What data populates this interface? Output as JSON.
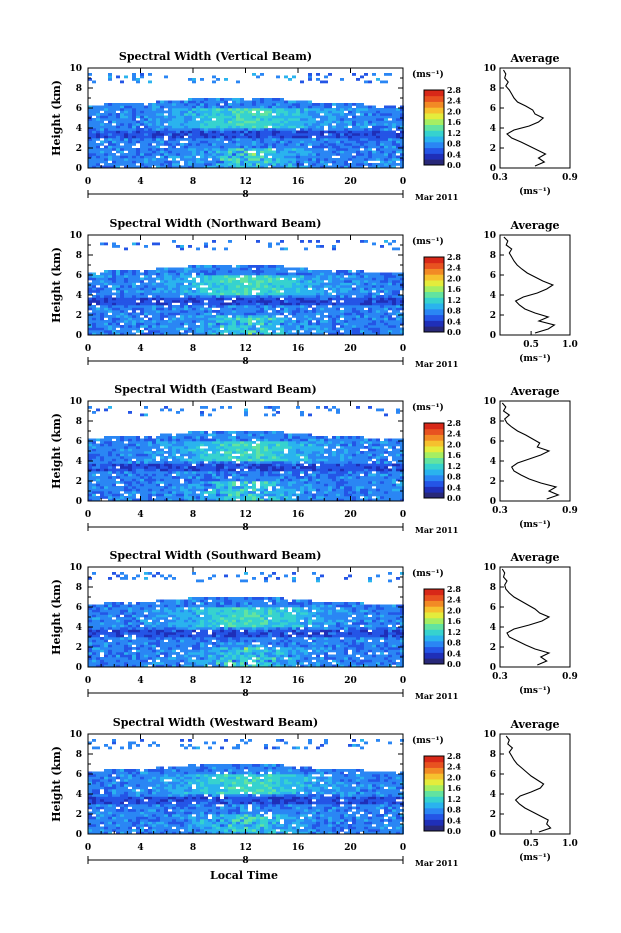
{
  "x_axis_title": "Local Time",
  "cbar_unit": "(ms⁻¹)",
  "cbar_ticks": [
    "0.0",
    "0.4",
    "0.8",
    "1.2",
    "1.6",
    "2.0",
    "2.4",
    "2.8"
  ],
  "cbar_colors": [
    "#282878",
    "#1f2fb8",
    "#2455e6",
    "#2a86f4",
    "#2ab3ee",
    "#36d2cf",
    "#62e3a0",
    "#a5ee62",
    "#e4ec3c",
    "#f6c12e",
    "#f28a25",
    "#e85220",
    "#d82818"
  ],
  "date_label": "Mar 2011",
  "day_marker": "8",
  "x_ticks": [
    "0",
    "4",
    "8",
    "12",
    "16",
    "20",
    "0"
  ],
  "y_ticks": [
    "0",
    "2",
    "4",
    "6",
    "8",
    "10"
  ],
  "y_label": "Height (km)",
  "avg_title": "Average",
  "avg_unit": "(ms⁻¹)",
  "chart_data": [
    {
      "type": "heatmap",
      "title": "Spectral Width (Vertical Beam)",
      "xlabel": "Local Time",
      "ylabel": "Height (km)",
      "xlim": [
        0,
        24
      ],
      "ylim": [
        0,
        10
      ],
      "clim": [
        0,
        2.8
      ],
      "profile": {
        "title": "Average",
        "xlabel": "(ms⁻¹)",
        "xlim": [
          0.3,
          0.9
        ],
        "xtick_values": [
          0.3,
          0.9
        ],
        "xtick_labels": [
          "0.3",
          "0.9"
        ],
        "height": [
          0.2,
          0.6,
          1.0,
          1.4,
          1.8,
          2.2,
          2.6,
          3.0,
          3.4,
          3.8,
          4.2,
          4.6,
          5.0,
          5.4,
          5.8,
          6.2,
          6.6,
          7.0,
          7.4,
          7.8,
          8.2,
          8.6,
          9.0,
          9.4,
          9.8
        ],
        "value": [
          0.6,
          0.68,
          0.63,
          0.69,
          0.62,
          0.55,
          0.48,
          0.4,
          0.36,
          0.42,
          0.55,
          0.63,
          0.67,
          0.6,
          0.58,
          0.52,
          0.45,
          0.42,
          0.4,
          0.38,
          0.35,
          0.37,
          0.34,
          0.35,
          0.33
        ]
      }
    },
    {
      "type": "heatmap",
      "title": "Spectral Width (Northward Beam)",
      "xlabel": "Local Time",
      "ylabel": "Height (km)",
      "xlim": [
        0,
        24
      ],
      "ylim": [
        0,
        10
      ],
      "clim": [
        0,
        2.8
      ],
      "profile": {
        "title": "Average",
        "xlabel": "(ms⁻¹)",
        "xlim": [
          0.1,
          1.0
        ],
        "xtick_values": [
          0.5,
          1.0
        ],
        "xtick_labels": [
          "0.5",
          "1.0"
        ],
        "height": [
          0.2,
          0.6,
          1.0,
          1.4,
          1.8,
          2.2,
          2.6,
          3.0,
          3.4,
          3.8,
          4.2,
          4.6,
          5.0,
          5.4,
          5.8,
          6.2,
          6.6,
          7.0,
          7.4,
          7.8,
          8.2,
          8.6,
          9.0,
          9.4,
          9.8
        ],
        "value": [
          0.55,
          0.72,
          0.8,
          0.6,
          0.72,
          0.55,
          0.42,
          0.35,
          0.3,
          0.4,
          0.58,
          0.7,
          0.78,
          0.65,
          0.55,
          0.45,
          0.38,
          0.32,
          0.28,
          0.25,
          0.22,
          0.25,
          0.18,
          0.2,
          0.15
        ]
      }
    },
    {
      "type": "heatmap",
      "title": "Spectral Width (Eastward Beam)",
      "xlabel": "Local Time",
      "ylabel": "Height (km)",
      "xlim": [
        0,
        24
      ],
      "ylim": [
        0,
        10
      ],
      "clim": [
        0,
        2.8
      ],
      "profile": {
        "title": "Average",
        "xlabel": "(ms⁻¹)",
        "xlim": [
          0.3,
          0.9
        ],
        "xtick_values": [
          0.3,
          0.9
        ],
        "xtick_labels": [
          "0.3",
          "0.9"
        ],
        "height": [
          0.2,
          0.6,
          1.0,
          1.4,
          1.8,
          2.2,
          2.6,
          3.0,
          3.4,
          3.8,
          4.2,
          4.6,
          5.0,
          5.4,
          5.8,
          6.2,
          6.6,
          7.0,
          7.4,
          7.8,
          8.2,
          8.6,
          9.0,
          9.4,
          9.8
        ],
        "value": [
          0.7,
          0.8,
          0.72,
          0.78,
          0.65,
          0.55,
          0.48,
          0.42,
          0.4,
          0.45,
          0.55,
          0.65,
          0.72,
          0.62,
          0.64,
          0.58,
          0.52,
          0.45,
          0.4,
          0.36,
          0.34,
          0.38,
          0.33,
          0.35,
          0.32
        ]
      }
    },
    {
      "type": "heatmap",
      "title": "Spectral Width (Southward Beam)",
      "xlabel": "Local Time",
      "ylabel": "Height (km)",
      "xlim": [
        0,
        24
      ],
      "ylim": [
        0,
        10
      ],
      "clim": [
        0,
        2.8
      ],
      "profile": {
        "title": "Average",
        "xlabel": "(ms⁻¹)",
        "xlim": [
          0.3,
          0.9
        ],
        "xtick_values": [
          0.3,
          0.9
        ],
        "xtick_labels": [
          "0.3",
          "0.9"
        ],
        "height": [
          0.2,
          0.6,
          1.0,
          1.4,
          1.8,
          2.2,
          2.6,
          3.0,
          3.4,
          3.8,
          4.2,
          4.6,
          5.0,
          5.4,
          5.8,
          6.2,
          6.6,
          7.0,
          7.4,
          7.8,
          8.2,
          8.6,
          9.0,
          9.4,
          9.8
        ],
        "value": [
          0.62,
          0.7,
          0.65,
          0.72,
          0.6,
          0.52,
          0.45,
          0.38,
          0.36,
          0.42,
          0.55,
          0.66,
          0.72,
          0.64,
          0.6,
          0.54,
          0.48,
          0.42,
          0.38,
          0.35,
          0.34,
          0.36,
          0.33,
          0.34,
          0.32
        ]
      }
    },
    {
      "type": "heatmap",
      "title": "Spectral Width (Westward Beam)",
      "xlabel": "Local Time",
      "ylabel": "Height (km)",
      "xlim": [
        0,
        24
      ],
      "ylim": [
        0,
        10
      ],
      "clim": [
        0,
        2.8
      ],
      "profile": {
        "title": "Average",
        "xlabel": "(ms⁻¹)",
        "xlim": [
          0.1,
          1.0
        ],
        "xtick_values": [
          0.5,
          1.0
        ],
        "xtick_labels": [
          "0.5",
          "1.0"
        ],
        "height": [
          0.2,
          0.6,
          1.0,
          1.4,
          1.8,
          2.2,
          2.6,
          3.0,
          3.4,
          3.8,
          4.2,
          4.6,
          5.0,
          5.4,
          5.8,
          6.2,
          6.6,
          7.0,
          7.4,
          7.8,
          8.2,
          8.6,
          9.0,
          9.4,
          9.8
        ],
        "value": [
          0.6,
          0.75,
          0.7,
          0.72,
          0.62,
          0.52,
          0.42,
          0.35,
          0.3,
          0.36,
          0.5,
          0.62,
          0.66,
          0.58,
          0.5,
          0.44,
          0.38,
          0.32,
          0.28,
          0.25,
          0.22,
          0.26,
          0.2,
          0.22,
          0.18
        ]
      }
    }
  ]
}
